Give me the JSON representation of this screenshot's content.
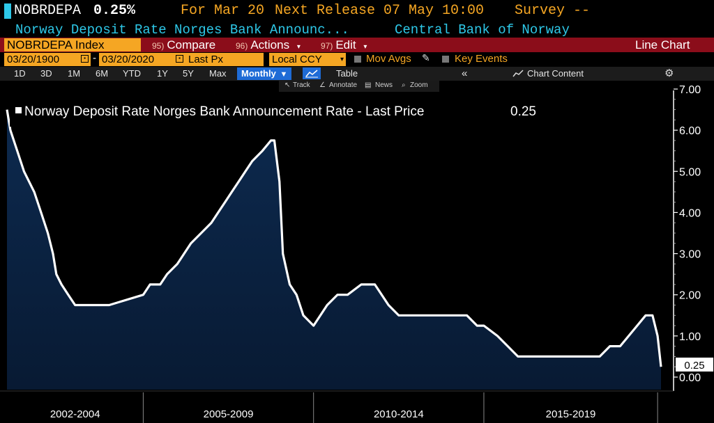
{
  "header": {
    "ticker": "NOBRDEPA",
    "last_value": "0.25%",
    "for_label": "For Mar 20",
    "next_release": "Next Release 07 May 10:00",
    "survey": "Survey --",
    "description": "Norway Deposit Rate Norges Bank Announc...",
    "source": "Central Bank of Norway"
  },
  "menu": {
    "security": "NOBRDEPA Index",
    "compare_num": "95)",
    "compare": "Compare",
    "actions_num": "96)",
    "actions": "Actions",
    "edit_num": "97)",
    "edit": "Edit",
    "chart_type": "Line Chart"
  },
  "settings": {
    "start_date": "03/20/1900",
    "dash": "-",
    "end_date": "03/20/2020",
    "field": "Last Px",
    "currency": "Local CCY",
    "mov_avgs": "Mov Avgs",
    "key_events": "Key Events"
  },
  "toolbar": {
    "ranges": [
      "1D",
      "3D",
      "1M",
      "6M",
      "YTD",
      "1Y",
      "5Y",
      "Max"
    ],
    "period": "Monthly",
    "table": "Table",
    "chart_content": "Chart Content",
    "collapse": "«"
  },
  "tools": {
    "track": "Track",
    "annotate": "Annotate",
    "news": "News",
    "zoom": "Zoom"
  },
  "colors": {
    "accent_orange": "#f5a623",
    "cyan": "#2ec8e8",
    "menu_red": "#8b0d1a",
    "area_fill": "#0b2342",
    "line": "#ffffff"
  },
  "chart_data": {
    "type": "area",
    "title": "Norway Deposit Rate Norges Bank Announcement Rate - Last Price",
    "legend_value": "0.25",
    "last_label": "0.25",
    "ylim": [
      0,
      7
    ],
    "yticks": [
      "7.00",
      "6.00",
      "5.00",
      "4.00",
      "3.00",
      "2.00",
      "1.00",
      "0.00"
    ],
    "x_period_labels": [
      "2002-2004",
      "2005-2009",
      "2010-2014",
      "2015-2019"
    ],
    "series": [
      {
        "name": "NOBRDEPA Index",
        "x": [
          2001.0,
          2001.1,
          2001.3,
          2001.5,
          2001.8,
          2002.0,
          2002.2,
          2002.35,
          2002.45,
          2002.6,
          2002.8,
          2003.0,
          2003.2,
          2003.4,
          2003.6,
          2003.8,
          2004.0,
          2005.0,
          2005.2,
          2005.5,
          2005.7,
          2006.0,
          2006.2,
          2006.4,
          2006.7,
          2007.0,
          2007.2,
          2007.4,
          2007.6,
          2007.8,
          2008.0,
          2008.2,
          2008.5,
          2008.75,
          2008.85,
          2009.0,
          2009.1,
          2009.3,
          2009.5,
          2009.7,
          2010.0,
          2010.4,
          2010.7,
          2011.0,
          2011.4,
          2011.8,
          2012.2,
          2012.5,
          2013.0,
          2013.5,
          2013.8,
          2014.0,
          2014.5,
          2014.8,
          2015.0,
          2015.4,
          2015.7,
          2016.0,
          2016.5,
          2017.0,
          2017.8,
          2018.4,
          2018.7,
          2019.0,
          2019.25,
          2019.5,
          2019.75,
          2019.95,
          2020.1,
          2020.2
        ],
        "values": [
          6.5,
          6.0,
          5.5,
          5.0,
          4.5,
          4.0,
          3.5,
          3.0,
          2.5,
          2.25,
          2.0,
          1.75,
          1.75,
          1.75,
          1.75,
          1.75,
          1.75,
          2.0,
          2.25,
          2.25,
          2.5,
          2.75,
          3.0,
          3.25,
          3.5,
          3.75,
          4.0,
          4.25,
          4.5,
          4.75,
          5.0,
          5.25,
          5.5,
          5.75,
          5.75,
          4.75,
          3.0,
          2.25,
          2.0,
          1.5,
          1.25,
          1.75,
          2.0,
          2.0,
          2.25,
          2.25,
          1.75,
          1.5,
          1.5,
          1.5,
          1.5,
          1.5,
          1.5,
          1.25,
          1.25,
          1.0,
          0.75,
          0.5,
          0.5,
          0.5,
          0.5,
          0.5,
          0.75,
          0.75,
          1.0,
          1.25,
          1.5,
          1.5,
          1.0,
          0.25
        ]
      }
    ]
  }
}
